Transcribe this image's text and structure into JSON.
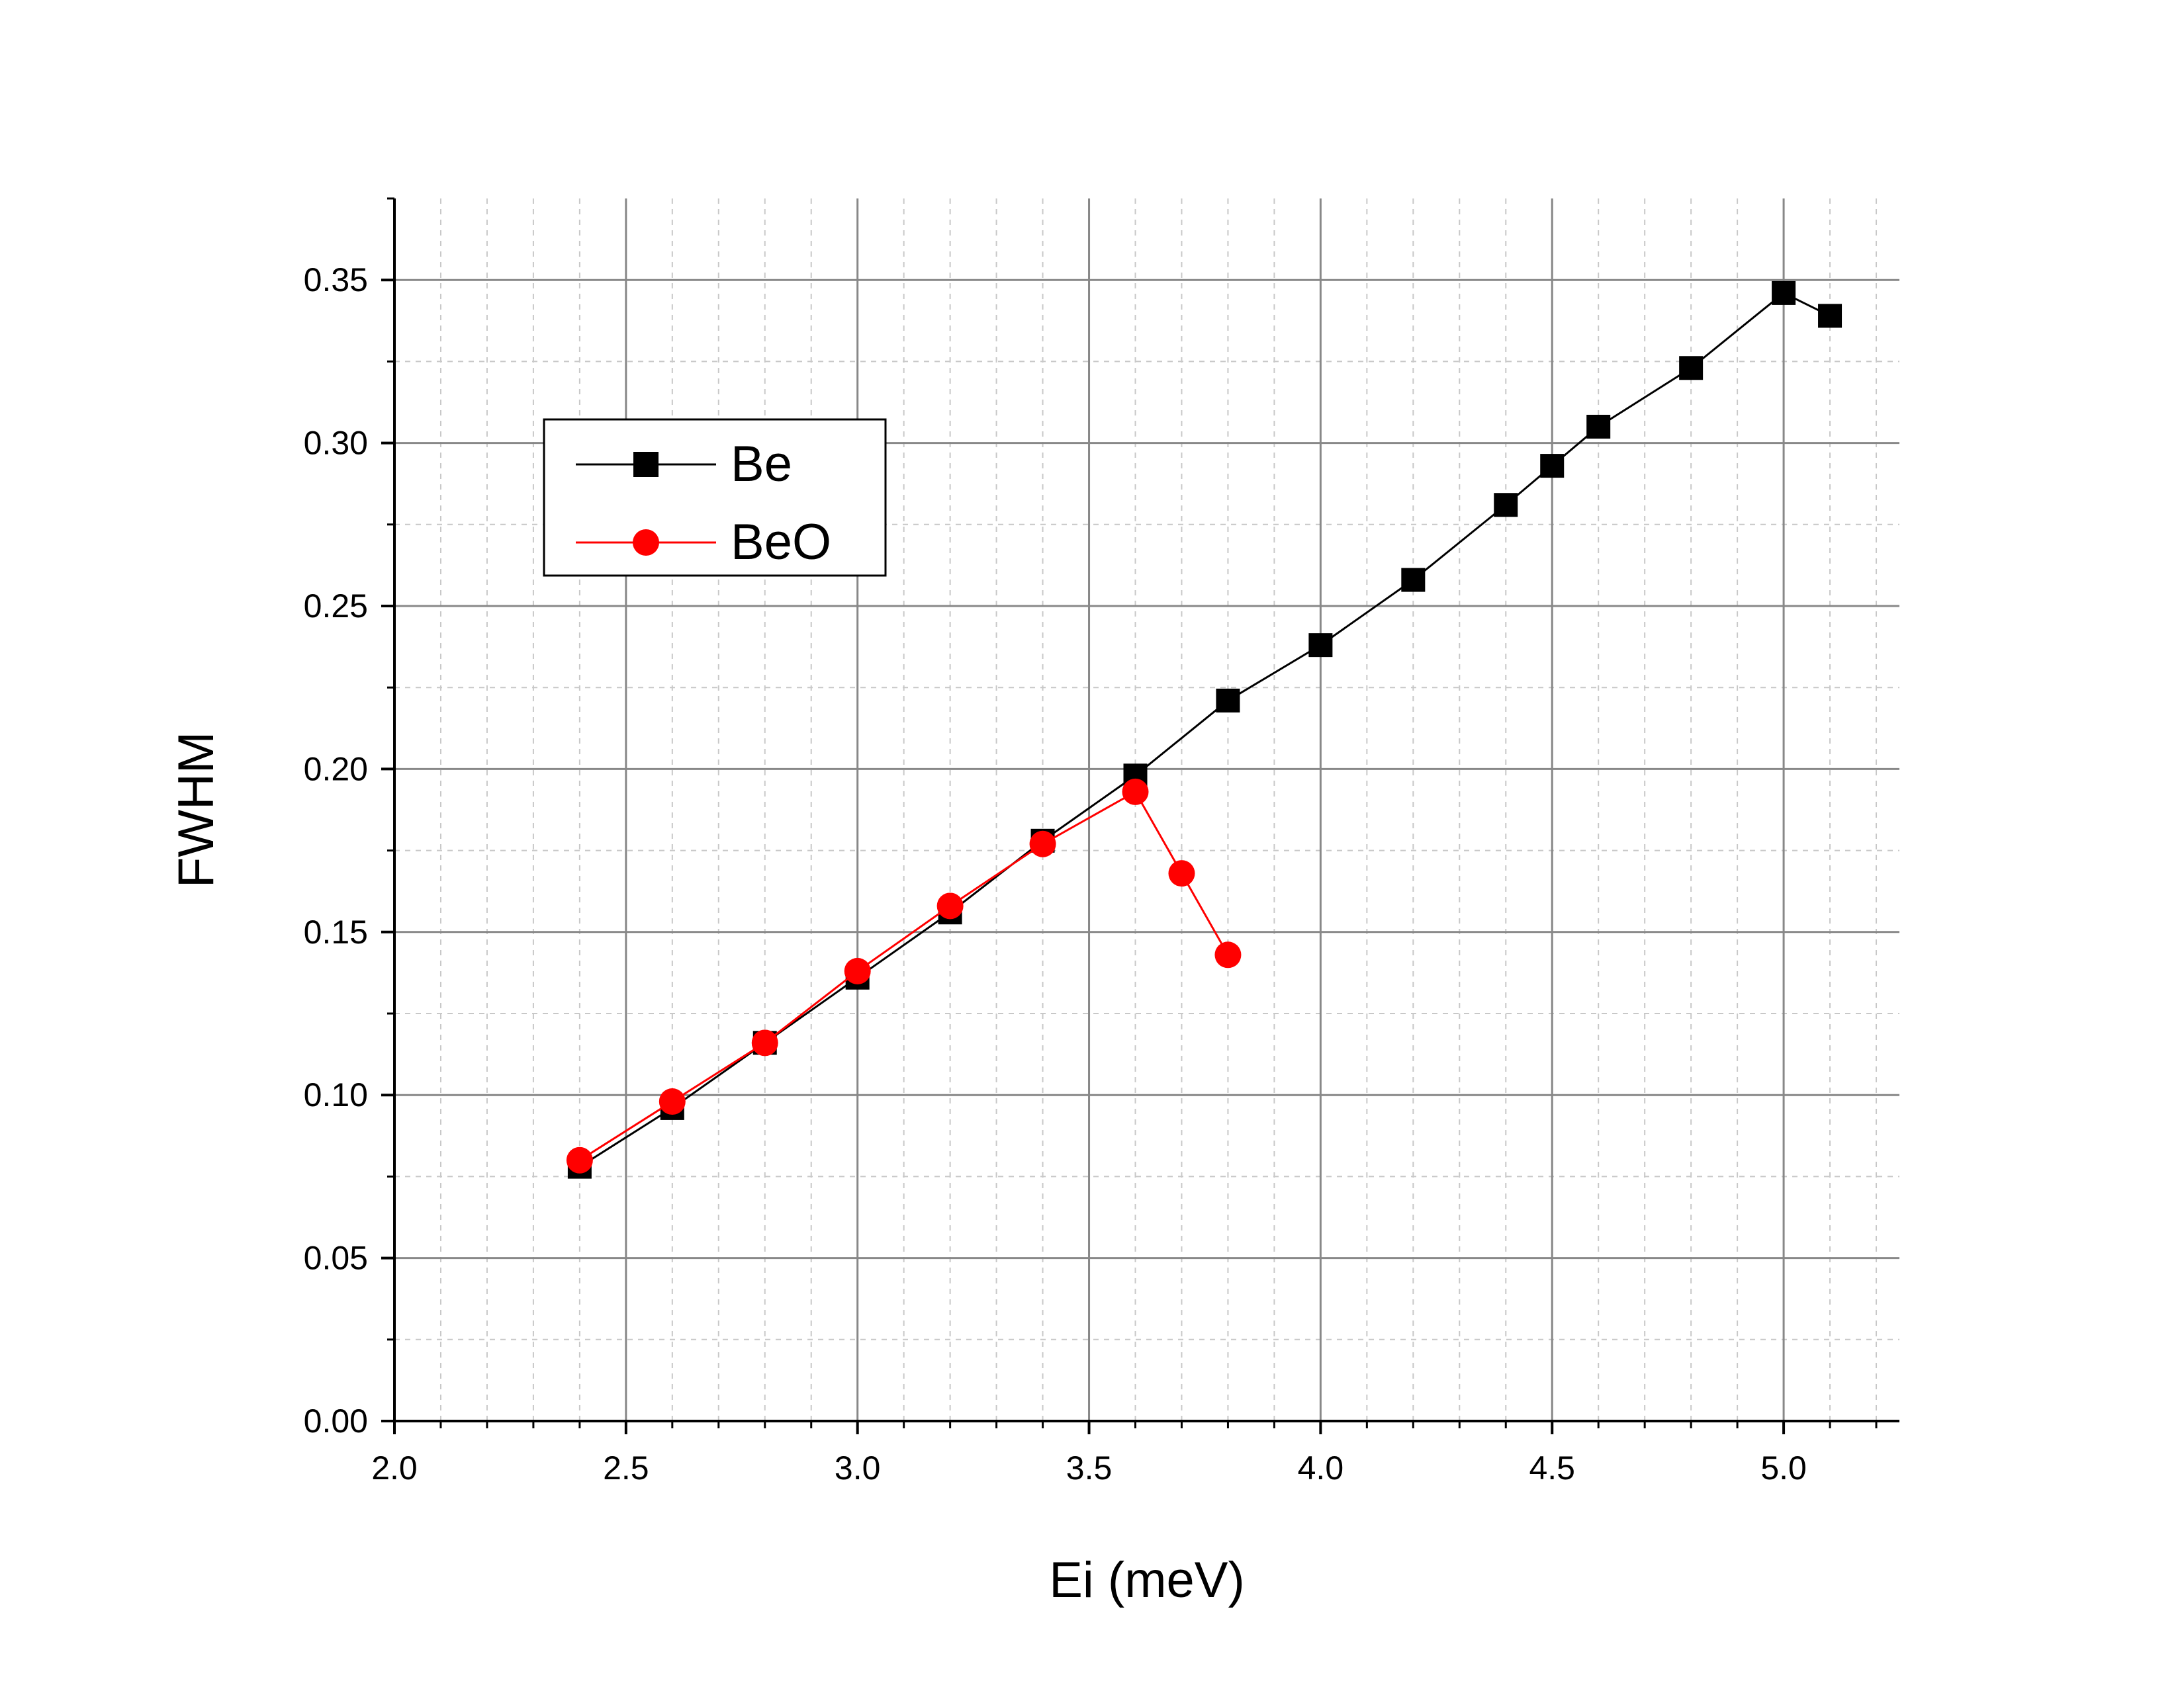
{
  "chart_data": {
    "type": "line",
    "title": "",
    "xlabel": "Ei (meV)",
    "ylabel": "FWHM",
    "xlim": [
      2.0,
      5.25
    ],
    "ylim": [
      0.0,
      0.375
    ],
    "x_ticks": [
      "2.0",
      "2.5",
      "3.0",
      "3.5",
      "4.0",
      "4.5",
      "5.0"
    ],
    "y_ticks": [
      "0.00",
      "0.05",
      "0.10",
      "0.15",
      "0.20",
      "0.25",
      "0.30",
      "0.35"
    ],
    "grid": true,
    "legend_position": "top-left",
    "series": [
      {
        "name": "Be",
        "color": "#000000",
        "marker": "square",
        "x": [
          2.4,
          2.6,
          2.8,
          3.0,
          3.2,
          3.4,
          3.6,
          3.8,
          4.0,
          4.2,
          4.4,
          4.5,
          4.6,
          4.8,
          5.0,
          5.1
        ],
        "y": [
          0.078,
          0.096,
          0.116,
          0.136,
          0.156,
          0.178,
          0.198,
          0.221,
          0.238,
          0.258,
          0.281,
          0.293,
          0.305,
          0.323,
          0.346,
          0.339
        ]
      },
      {
        "name": "BeO",
        "color": "#ff0000",
        "marker": "circle",
        "x": [
          2.4,
          2.6,
          2.8,
          3.0,
          3.2,
          3.4,
          3.6,
          3.7,
          3.8
        ],
        "y": [
          0.08,
          0.098,
          0.116,
          0.138,
          0.158,
          0.177,
          0.193,
          0.168,
          0.143
        ]
      }
    ]
  }
}
